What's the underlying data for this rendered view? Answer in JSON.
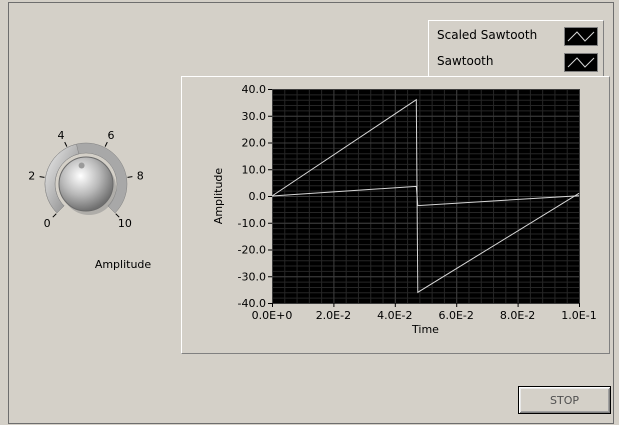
{
  "legend": {
    "items": [
      {
        "label": "Scaled Sawtooth"
      },
      {
        "label": "Sawtooth"
      }
    ]
  },
  "knob": {
    "label": "Amplitude",
    "ticks": [
      "0",
      "2",
      "4",
      "6",
      "8",
      "10"
    ],
    "value": 4.5
  },
  "chart_data": {
    "type": "line",
    "xlabel": "Time",
    "ylabel": "Amplitude",
    "xlim": [
      0,
      0.1
    ],
    "ylim": [
      -40,
      40
    ],
    "xticks": [
      "0.0E+0",
      "2.0E-2",
      "4.0E-2",
      "6.0E-2",
      "8.0E-2",
      "1.0E-1"
    ],
    "yticks": [
      "40.0",
      "30.0",
      "20.0",
      "10.0",
      "0.0",
      "-10.0",
      "-20.0",
      "-30.0",
      "-40.0"
    ],
    "grid": true,
    "legend": "top-right",
    "series": [
      {
        "name": "Scaled Sawtooth",
        "x": [
          0,
          0.047,
          0.0475,
          0.1
        ],
        "y": [
          0,
          36,
          -36,
          1
        ]
      },
      {
        "name": "Sawtooth",
        "x": [
          0,
          0.047,
          0.0475,
          0.1
        ],
        "y": [
          0,
          3.6,
          -3.6,
          0.1
        ]
      }
    ]
  },
  "stop_button": {
    "label": "STOP"
  },
  "colors": {
    "plot_bg": "#000000",
    "grid": "#3c3c3c",
    "trace": "#d8d8d8",
    "panel": "#d4d0c8"
  }
}
